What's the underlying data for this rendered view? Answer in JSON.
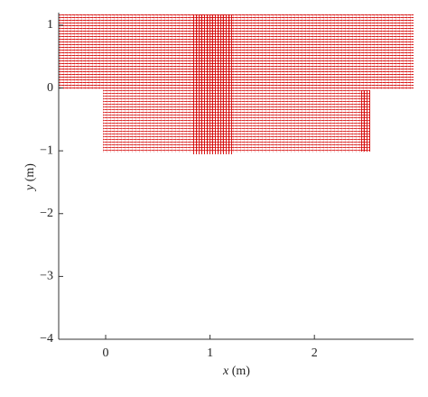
{
  "chart_data": {
    "type": "quiver",
    "xlabel": {
      "var": "x",
      "unit": " (m)"
    },
    "ylabel": {
      "var": "y",
      "unit": " (m)"
    },
    "xlim": [
      -0.45,
      2.95
    ],
    "xticks": [
      0,
      1,
      2
    ],
    "ylim": [
      -4,
      1.2
    ],
    "yticks": [
      {
        "value": -4,
        "label": "−4"
      },
      {
        "value": -3,
        "label": "−3"
      },
      {
        "value": -2,
        "label": "−2"
      },
      {
        "value": -1,
        "label": "−1"
      },
      0,
      1
    ],
    "color": "#d40000"
  }
}
